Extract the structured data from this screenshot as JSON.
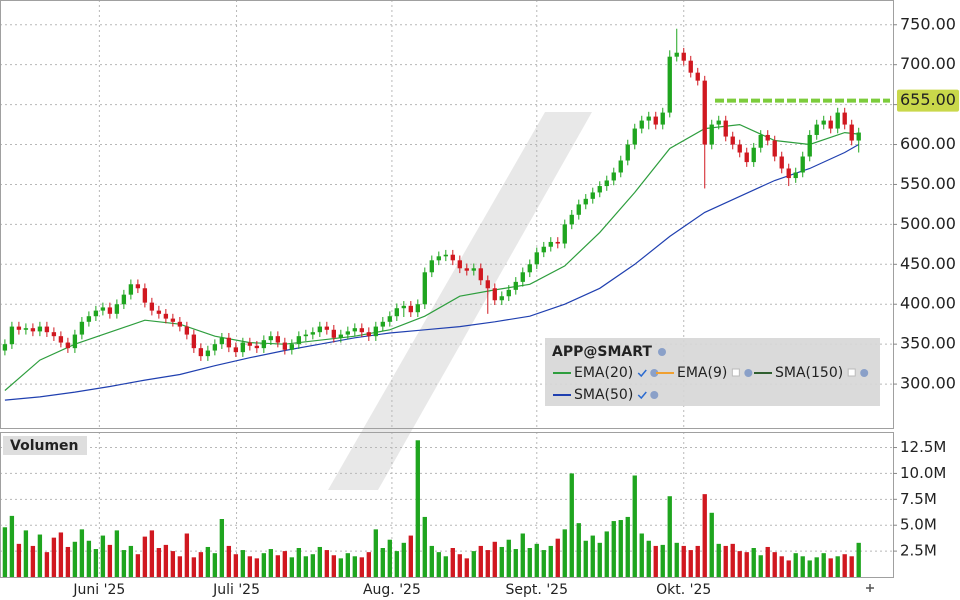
{
  "chart_data": [
    {
      "type": "candlestick",
      "legend_title": "APP@SMART",
      "up_color": "#1fa51f",
      "down_color": "#d01820",
      "open": [
        342,
        350,
        372,
        368,
        370,
        366,
        372,
        365,
        360,
        352,
        345,
        362,
        378,
        385,
        392,
        396,
        388,
        400,
        412,
        425,
        420,
        402,
        392,
        388,
        382,
        378,
        372,
        362,
        345,
        335,
        342,
        350,
        358,
        346,
        340,
        352,
        348,
        345,
        355,
        360,
        352,
        343,
        350,
        360,
        362,
        365,
        372,
        368,
        358,
        362,
        366,
        370,
        365,
        360,
        372,
        378,
        385,
        395,
        398,
        390,
        400,
        440,
        455,
        460,
        462,
        455,
        445,
        442,
        445,
        430,
        420,
        405,
        410,
        418,
        428,
        440,
        450,
        465,
        472,
        478,
        476,
        500,
        512,
        525,
        532,
        540,
        548,
        555,
        565,
        580,
        600,
        620,
        630,
        635,
        625,
        640,
        710,
        715,
        705,
        690,
        680,
        600,
        625,
        630,
        610,
        600,
        590,
        578,
        596,
        612,
        605,
        585,
        570,
        558,
        565,
        585,
        612,
        625,
        630,
        620,
        640,
        625,
        605
      ],
      "high": [
        356,
        378,
        378,
        376,
        376,
        378,
        378,
        371,
        366,
        358,
        368,
        384,
        391,
        398,
        402,
        402,
        406,
        418,
        431,
        431,
        426,
        408,
        398,
        394,
        388,
        384,
        378,
        368,
        351,
        348,
        356,
        364,
        364,
        352,
        358,
        358,
        354,
        361,
        366,
        366,
        358,
        356,
        366,
        368,
        371,
        378,
        378,
        374,
        368,
        372,
        376,
        376,
        371,
        378,
        384,
        391,
        401,
        404,
        404,
        406,
        446,
        461,
        466,
        468,
        468,
        461,
        451,
        451,
        451,
        436,
        426,
        416,
        424,
        434,
        446,
        456,
        471,
        478,
        484,
        484,
        506,
        518,
        531,
        538,
        546,
        554,
        561,
        571,
        586,
        606,
        626,
        636,
        641,
        641,
        646,
        718,
        745,
        721,
        711,
        696,
        686,
        631,
        636,
        636,
        616,
        606,
        596,
        602,
        618,
        618,
        611,
        591,
        576,
        571,
        591,
        618,
        631,
        636,
        636,
        646,
        646,
        631,
        621
      ],
      "low": [
        336,
        344,
        362,
        362,
        360,
        360,
        359,
        354,
        346,
        339,
        339,
        356,
        372,
        379,
        386,
        382,
        382,
        394,
        406,
        414,
        396,
        386,
        382,
        376,
        372,
        366,
        356,
        339,
        329,
        329,
        336,
        344,
        340,
        334,
        334,
        342,
        339,
        339,
        349,
        346,
        337,
        337,
        344,
        354,
        356,
        359,
        362,
        352,
        352,
        356,
        360,
        359,
        354,
        354,
        366,
        372,
        379,
        384,
        384,
        384,
        394,
        434,
        449,
        454,
        449,
        439,
        436,
        436,
        424,
        388,
        399,
        399,
        404,
        412,
        422,
        434,
        444,
        459,
        466,
        470,
        470,
        494,
        506,
        519,
        526,
        534,
        542,
        549,
        559,
        574,
        594,
        614,
        619,
        619,
        619,
        634,
        704,
        699,
        684,
        674,
        545,
        594,
        619,
        604,
        594,
        584,
        572,
        572,
        590,
        599,
        579,
        564,
        548,
        552,
        559,
        579,
        606,
        619,
        614,
        614,
        619,
        599,
        590
      ],
      "close": [
        350,
        372,
        368,
        370,
        366,
        372,
        365,
        360,
        352,
        345,
        362,
        378,
        385,
        392,
        396,
        388,
        400,
        412,
        425,
        420,
        402,
        392,
        388,
        382,
        378,
        372,
        362,
        345,
        335,
        342,
        350,
        358,
        346,
        340,
        352,
        348,
        345,
        355,
        360,
        352,
        343,
        350,
        360,
        362,
        365,
        372,
        368,
        358,
        362,
        366,
        370,
        365,
        360,
        372,
        378,
        385,
        395,
        398,
        390,
        400,
        440,
        455,
        460,
        462,
        455,
        445,
        442,
        445,
        430,
        420,
        405,
        410,
        418,
        428,
        440,
        450,
        465,
        472,
        478,
        476,
        500,
        512,
        525,
        532,
        540,
        548,
        555,
        565,
        580,
        600,
        620,
        630,
        635,
        625,
        640,
        710,
        715,
        705,
        690,
        680,
        600,
        625,
        630,
        610,
        600,
        590,
        578,
        596,
        612,
        605,
        585,
        570,
        558,
        565,
        585,
        612,
        625,
        630,
        620,
        640,
        625,
        605,
        615
      ],
      "xlim": [
        -0.7,
        126.9
      ],
      "xticks": [
        {
          "value": 13.5,
          "label": "Juni '25"
        },
        {
          "value": 33.1,
          "label": "Juli '25"
        },
        {
          "value": 55.3,
          "label": "Aug. '25"
        },
        {
          "value": 76,
          "label": "Sept. '25"
        },
        {
          "value": 97,
          "label": "Okt. '25"
        }
      ],
      "ylim": [
        245,
        781
      ],
      "yticks": [
        {
          "value": 300,
          "label": "300.00"
        },
        {
          "value": 350,
          "label": "350.00"
        },
        {
          "value": 400,
          "label": "400.00"
        },
        {
          "value": 450,
          "label": "450.00"
        },
        {
          "value": 500,
          "label": "500.00"
        },
        {
          "value": 550,
          "label": "550.00"
        },
        {
          "value": 600,
          "label": "600.00"
        },
        {
          "value": 650,
          "label": "650.00"
        },
        {
          "value": 700,
          "label": "700.00"
        },
        {
          "value": 750,
          "label": "750.00"
        }
      ],
      "grid": true,
      "level": {
        "value": 655,
        "label": "655.00",
        "color": "#7ccc3c"
      },
      "indicators": [
        {
          "name": "EMA(20)",
          "color": "#2e9e3e",
          "checked": true,
          "x": [
            0,
            5,
            10,
            15,
            20,
            25,
            30,
            35,
            40,
            45,
            50,
            55,
            60,
            65,
            70,
            75,
            80,
            85,
            90,
            95,
            100,
            105,
            110,
            115,
            120,
            122
          ],
          "values": [
            292,
            330,
            350,
            365,
            380,
            375,
            360,
            352,
            350,
            355,
            360,
            368,
            385,
            410,
            418,
            425,
            448,
            490,
            540,
            595,
            620,
            625,
            605,
            600,
            615,
            613
          ]
        },
        {
          "name": "EMA(9)",
          "color": "#f0a030",
          "checked": false
        },
        {
          "name": "SMA(150)",
          "color": "#2f5f2f",
          "checked": false
        },
        {
          "name": "SMA(50)",
          "color": "#2040b0",
          "checked": true,
          "x": [
            0,
            5,
            10,
            15,
            20,
            25,
            30,
            35,
            40,
            45,
            50,
            55,
            60,
            65,
            70,
            75,
            80,
            85,
            90,
            95,
            100,
            105,
            110,
            115,
            120,
            122
          ],
          "values": [
            280,
            284,
            290,
            297,
            305,
            312,
            323,
            333,
            342,
            350,
            358,
            364,
            368,
            372,
            378,
            385,
            400,
            420,
            450,
            485,
            515,
            535,
            555,
            570,
            590,
            600
          ]
        }
      ]
    },
    {
      "type": "bar",
      "title": "Volumen",
      "values": [
        4.8,
        5.9,
        3.2,
        4.5,
        3.0,
        4.1,
        2.4,
        3.8,
        4.3,
        2.9,
        3.4,
        4.6,
        3.5,
        2.7,
        4.0,
        3.1,
        4.5,
        2.6,
        3.0,
        2.2,
        3.9,
        4.5,
        2.8,
        3.1,
        2.5,
        2.0,
        4.2,
        1.9,
        2.4,
        2.9,
        2.3,
        5.6,
        3.0,
        2.2,
        2.6,
        2.0,
        1.8,
        2.3,
        2.7,
        2.1,
        2.5,
        1.9,
        2.8,
        2.0,
        2.2,
        2.9,
        2.6,
        2.1,
        1.8,
        2.3,
        2.0,
        1.9,
        2.4,
        4.6,
        2.8,
        3.6,
        2.5,
        3.3,
        4.0,
        13.2,
        5.8,
        3.0,
        2.4,
        2.0,
        2.8,
        2.2,
        1.8,
        2.5,
        3.0,
        2.6,
        3.4,
        2.9,
        3.6,
        2.7,
        4.2,
        2.8,
        3.2,
        2.6,
        3.0,
        3.7,
        4.6,
        10.0,
        5.2,
        3.5,
        4.0,
        3.3,
        4.4,
        5.4,
        5.5,
        5.8,
        9.8,
        4.2,
        3.5,
        3.0,
        3.1,
        7.8,
        3.3,
        3.0,
        2.6,
        3.0,
        8.0,
        6.2,
        3.2,
        3.0,
        3.2,
        2.5,
        2.4,
        2.8,
        2.1,
        2.9,
        2.4,
        2.0,
        1.6,
        2.3,
        2.0,
        1.6,
        1.9,
        2.3,
        1.8,
        2.0,
        2.2,
        2.0,
        3.3
      ],
      "ylim": [
        0,
        14
      ],
      "yticks": [
        {
          "value": 2.5,
          "label": "2.5M"
        },
        {
          "value": 5,
          "label": "5.0M"
        },
        {
          "value": 7.5,
          "label": "7.5M"
        },
        {
          "value": 10,
          "label": "10.0M"
        },
        {
          "value": 12.5,
          "label": "12.5M"
        }
      ]
    }
  ]
}
